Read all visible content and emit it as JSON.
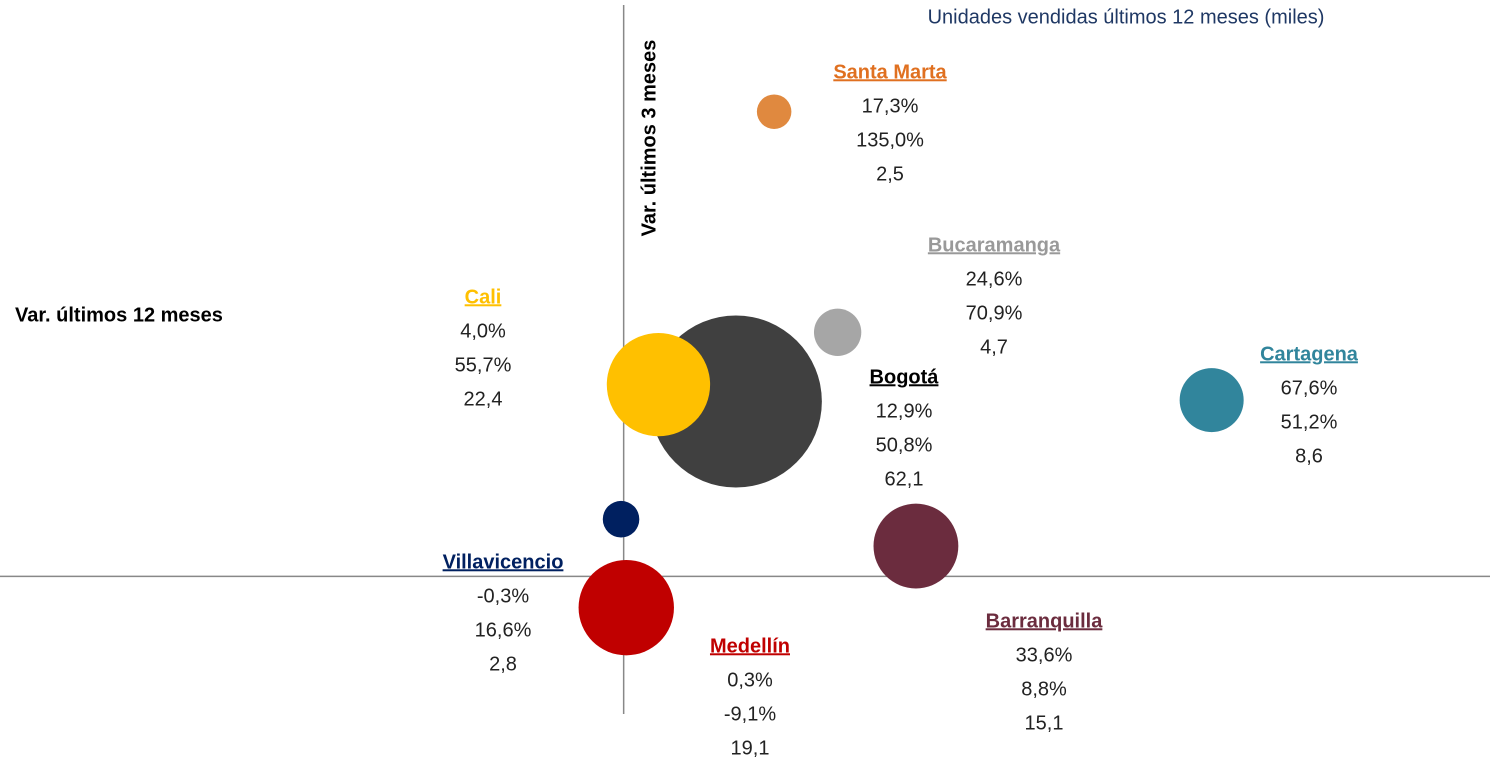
{
  "chart_data": {
    "type": "bubble",
    "title": "Unidades vendidas últimos 12 meses (miles)",
    "x_label": "Var. últimos 12 meses",
    "y_label": "Var. últimos 3 meses",
    "xlim": [
      -71.7,
      99.6
    ],
    "ylim": [
      -40,
      166
    ],
    "series": [
      {
        "name": "Bogotá",
        "color": "#404040",
        "label_color": "#000000",
        "x": [
          12.9
        ],
        "values": [
          50.8
        ],
        "sizes": [
          62.1
        ],
        "x_labels": [
          "12,9%"
        ],
        "value_labels": [
          "50,8%"
        ],
        "size_labels": [
          "62,1"
        ]
      },
      {
        "name": "Medellín",
        "color": "#C00000",
        "label_color": "#C00000",
        "x": [
          0.3
        ],
        "values": [
          -9.1
        ],
        "sizes": [
          19.1
        ],
        "x_labels": [
          "0,3%"
        ],
        "value_labels": [
          "-9,1%"
        ],
        "size_labels": [
          "19,1"
        ]
      },
      {
        "name": "Cali",
        "color": "#FFC000",
        "label_color": "#FFC000",
        "x": [
          4.0
        ],
        "values": [
          55.7
        ],
        "sizes": [
          22.4
        ],
        "x_labels": [
          "4,0%"
        ],
        "value_labels": [
          "55,7%"
        ],
        "size_labels": [
          "22,4"
        ]
      },
      {
        "name": "Barranquilla",
        "color": "#6B2C3E",
        "label_color": "#6B2C3E",
        "x": [
          33.6
        ],
        "values": [
          8.8
        ],
        "sizes": [
          15.1
        ],
        "x_labels": [
          "33,6%"
        ],
        "value_labels": [
          "8,8%"
        ],
        "size_labels": [
          "15,1"
        ]
      },
      {
        "name": "Cartagena",
        "color": "#31859C",
        "label_color": "#31859C",
        "x": [
          67.6
        ],
        "values": [
          51.2
        ],
        "sizes": [
          8.6
        ],
        "x_labels": [
          "67,6%"
        ],
        "value_labels": [
          "51,2%"
        ],
        "size_labels": [
          "8,6"
        ]
      },
      {
        "name": "Bucaramanga",
        "color": "#A6A6A6",
        "label_color": "#999999",
        "x": [
          24.6
        ],
        "values": [
          70.9
        ],
        "sizes": [
          4.7
        ],
        "x_labels": [
          "24,6%"
        ],
        "value_labels": [
          "70,9%"
        ],
        "size_labels": [
          "4,7"
        ]
      },
      {
        "name": "Villavicencio",
        "color": "#002060",
        "label_color": "#002060",
        "x": [
          -0.3
        ],
        "values": [
          16.6
        ],
        "sizes": [
          2.8
        ],
        "x_labels": [
          "-0,3%"
        ],
        "value_labels": [
          "16,6%"
        ],
        "size_labels": [
          "2,8"
        ]
      },
      {
        "name": "Santa Marta",
        "color": "#E0893F",
        "label_color": "#E07020",
        "x": [
          17.3
        ],
        "values": [
          135.0
        ],
        "sizes": [
          2.5
        ],
        "x_labels": [
          "17,3%"
        ],
        "value_labels": [
          "135,0%"
        ],
        "size_labels": [
          "2,5"
        ]
      }
    ]
  }
}
